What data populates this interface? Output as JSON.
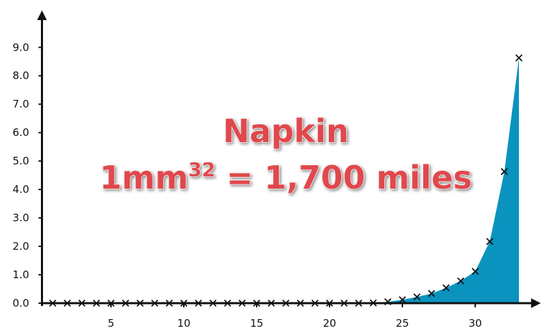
{
  "chart_data": {
    "type": "area",
    "annotation": {
      "line1": "Napkin",
      "line2_base": "1mm",
      "line2_sup": "32",
      "line2_rest": " = 1,700 miles"
    },
    "x": [
      1,
      2,
      3,
      4,
      5,
      6,
      7,
      8,
      9,
      10,
      11,
      12,
      13,
      14,
      15,
      16,
      17,
      18,
      19,
      20,
      21,
      22,
      23,
      24,
      25,
      26,
      27,
      28,
      29,
      30,
      31,
      32,
      33
    ],
    "values": [
      0,
      0,
      0,
      0,
      0,
      0,
      0,
      0,
      0,
      0,
      0,
      0,
      0,
      0,
      0,
      0,
      0,
      0,
      0,
      0,
      0,
      0,
      0.01,
      0.05,
      0.12,
      0.22,
      0.34,
      0.54,
      0.78,
      1.12,
      2.17,
      4.63,
      8.63
    ],
    "color": "#0b93bf",
    "xlim": [
      0.5,
      34.5
    ],
    "ylim": [
      0,
      10.3
    ],
    "xticks": [
      5,
      10,
      15,
      20,
      25,
      30
    ],
    "yticks": [
      {
        "value": 0,
        "label": "0.0"
      },
      {
        "value": 1,
        "label": "1.0"
      },
      {
        "value": 2,
        "label": "2.0"
      },
      {
        "value": 3,
        "label": "3.0"
      },
      {
        "value": 4,
        "label": "4.0"
      },
      {
        "value": 5,
        "label": "5.0"
      },
      {
        "value": 6,
        "label": "6.0"
      },
      {
        "value": 7,
        "label": "7.0"
      },
      {
        "value": 8,
        "label": "8.0"
      },
      {
        "value": 9,
        "label": "9.0"
      }
    ]
  }
}
